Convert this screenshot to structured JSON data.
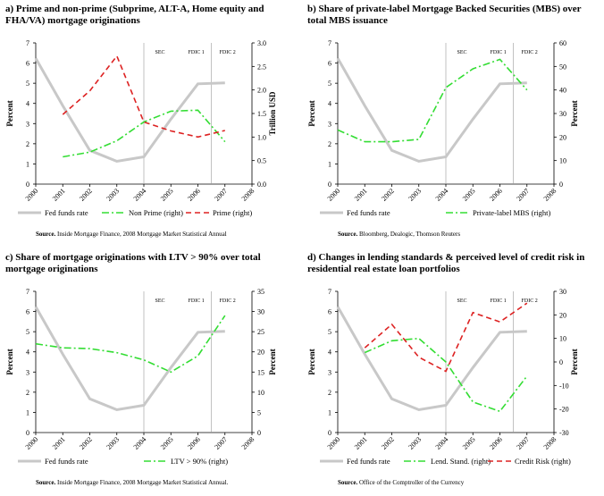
{
  "chart_data": [
    {
      "type": "line",
      "title": "a)  Prime and non-prime (Subprime, ALT-A, Home equity and FHA/VA) mortgage originations",
      "x": [
        2000,
        2001,
        2002,
        2003,
        2004,
        2005,
        2006,
        2007,
        2008
      ],
      "ylabel": "Percent",
      "ylim": [
        0,
        7
      ],
      "yticks": [
        0,
        1,
        2,
        3,
        4,
        5,
        6,
        7
      ],
      "y2label": "Trillion USD",
      "y2lim": [
        0,
        3
      ],
      "y2ticks": [
        "0.0",
        "0.5",
        "1.0",
        "1.5",
        "2.0",
        "2.5",
        "3.0"
      ],
      "annotations": [
        "SEC",
        "FDIC 1",
        "FDIC 2"
      ],
      "vlines": [
        2004,
        2006.5
      ],
      "source_label": "Source.",
      "source": "Inside Mortgage Finance, 2008 Mortgage Market Statistical Annual",
      "series": [
        {
          "name": "Fed funds rate",
          "axis": "left",
          "color": "#c8c8c8",
          "style": "solid",
          "x": [
            2000,
            2001,
            2002,
            2003,
            2004,
            2005,
            2006,
            2007
          ],
          "values": [
            6.24,
            3.88,
            1.67,
            1.13,
            1.35,
            3.22,
            4.97,
            5.02
          ]
        },
        {
          "name": "Non Prime (right)",
          "axis": "right",
          "color": "#33dd33",
          "style": "dashdot",
          "x": [
            2001,
            2002,
            2003,
            2004,
            2005,
            2006,
            2007
          ],
          "values": [
            0.58,
            0.68,
            0.92,
            1.32,
            1.55,
            1.57,
            0.9
          ]
        },
        {
          "name": "Prime (right)",
          "axis": "right",
          "color": "#dd2222",
          "style": "dashed",
          "x": [
            2001,
            2002,
            2003,
            2004,
            2005,
            2006,
            2007
          ],
          "values": [
            1.48,
            1.98,
            2.72,
            1.32,
            1.13,
            1.0,
            1.14
          ]
        }
      ]
    },
    {
      "type": "line",
      "title": "b)  Share of private-label Mortgage Backed Securities (MBS) over total MBS issuance",
      "x": [
        2000,
        2001,
        2002,
        2003,
        2004,
        2005,
        2006,
        2007,
        2008
      ],
      "ylabel": "Percent",
      "ylim": [
        0,
        7
      ],
      "yticks": [
        0,
        1,
        2,
        3,
        4,
        5,
        6,
        7
      ],
      "y2label": "Percent",
      "y2lim": [
        0,
        60
      ],
      "y2ticks": [
        "0",
        "10",
        "20",
        "30",
        "40",
        "50",
        "60"
      ],
      "annotations": [
        "SEC",
        "FDIC 1",
        "FDIC 2"
      ],
      "vlines": [
        2004,
        2006.5
      ],
      "source_label": "Source.",
      "source": "Bloomberg, Dealogic, Thomson Reuters",
      "series": [
        {
          "name": "Fed funds rate",
          "axis": "left",
          "color": "#c8c8c8",
          "style": "solid",
          "x": [
            2000,
            2001,
            2002,
            2003,
            2004,
            2005,
            2006,
            2007
          ],
          "values": [
            6.24,
            3.88,
            1.67,
            1.13,
            1.35,
            3.22,
            4.97,
            5.02
          ]
        },
        {
          "name": "Private-label MBS (right)",
          "axis": "right",
          "color": "#33dd33",
          "style": "dashdot",
          "x": [
            2000,
            2001,
            2002,
            2003,
            2004,
            2005,
            2006,
            2007
          ],
          "values": [
            23,
            18,
            18,
            19,
            41,
            49,
            53,
            40
          ]
        }
      ]
    },
    {
      "type": "line",
      "title": "c)  Share of mortgage originations with LTV > 90% over total mortgage originations",
      "x": [
        2000,
        2001,
        2002,
        2003,
        2004,
        2005,
        2006,
        2007,
        2008
      ],
      "ylabel": "Percent",
      "ylim": [
        0,
        7
      ],
      "yticks": [
        0,
        1,
        2,
        3,
        4,
        5,
        6,
        7
      ],
      "y2label": "Percent",
      "y2lim": [
        0,
        35
      ],
      "y2ticks": [
        "0",
        "5",
        "10",
        "15",
        "20",
        "25",
        "30",
        "35"
      ],
      "annotations": [
        "SEC",
        "FDIC 1",
        "FDIC 2"
      ],
      "vlines": [
        2004,
        2006.5
      ],
      "source_label": "Source.",
      "source": "Inside Mortgage Finance, 2008 Mortgage Market Statistical Annual.",
      "series": [
        {
          "name": "Fed funds rate",
          "axis": "left",
          "color": "#c8c8c8",
          "style": "solid",
          "x": [
            2000,
            2001,
            2002,
            2003,
            2004,
            2005,
            2006,
            2007
          ],
          "values": [
            6.24,
            3.88,
            1.67,
            1.13,
            1.35,
            3.22,
            4.97,
            5.02
          ]
        },
        {
          "name": "LTV > 90% (right)",
          "axis": "right",
          "color": "#33dd33",
          "style": "dashdot",
          "x": [
            2000,
            2001,
            2002,
            2003,
            2004,
            2005,
            2006,
            2007
          ],
          "values": [
            22,
            21,
            20.8,
            19.8,
            18,
            15,
            19,
            29
          ]
        }
      ]
    },
    {
      "type": "line",
      "title": "d)  Changes in lending standards & perceived level of credit risk in residential real estate loan portfolios",
      "x": [
        2000,
        2001,
        2002,
        2003,
        2004,
        2005,
        2006,
        2007,
        2008
      ],
      "ylabel": "Percent",
      "ylim": [
        0,
        7
      ],
      "yticks": [
        0,
        1,
        2,
        3,
        4,
        5,
        6,
        7
      ],
      "y2label": "Percent",
      "y2lim": [
        -30,
        30
      ],
      "y2ticks": [
        "-30",
        "-20",
        "-10",
        "0",
        "10",
        "20",
        "30"
      ],
      "annotations": [
        "SEC",
        "FDIC 1",
        "FDIC 2"
      ],
      "vlines": [
        2004,
        2006.5
      ],
      "source_label": "Source.",
      "source": "Office of the Comptroller of the Currency",
      "series": [
        {
          "name": "Fed funds rate",
          "axis": "left",
          "color": "#c8c8c8",
          "style": "solid",
          "x": [
            2000,
            2001,
            2002,
            2003,
            2004,
            2005,
            2006,
            2007
          ],
          "values": [
            6.24,
            3.88,
            1.67,
            1.13,
            1.35,
            3.22,
            4.97,
            5.02
          ]
        },
        {
          "name": "Lend. Stand. (right)",
          "axis": "right",
          "color": "#33dd33",
          "style": "dashdot",
          "x": [
            2001,
            2002,
            2003,
            2004,
            2005,
            2006,
            2007
          ],
          "values": [
            4,
            9,
            10,
            0,
            -17,
            -21,
            -6
          ]
        },
        {
          "name": "Credit Risk (right)",
          "axis": "right",
          "color": "#dd2222",
          "style": "dashed",
          "x": [
            2001,
            2002,
            2003,
            2004,
            2005,
            2006,
            2007
          ],
          "values": [
            6,
            16,
            2,
            -4,
            21,
            17,
            25
          ]
        }
      ]
    }
  ]
}
